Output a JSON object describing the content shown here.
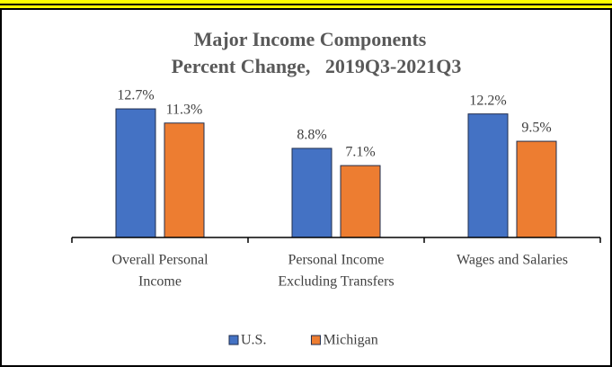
{
  "chart_data": {
    "type": "bar",
    "title": [
      "Major Income Components",
      "Percent Change,   2019Q3-2021Q3"
    ],
    "categories": [
      [
        "Overall Personal",
        "Income"
      ],
      [
        "Personal Income",
        "Excluding Transfers"
      ],
      [
        "Wages and Salaries"
      ]
    ],
    "series": [
      {
        "name": "U.S.",
        "color": "#4472c4",
        "values": [
          12.7,
          8.8,
          12.2
        ],
        "value_labels": [
          "12.7%",
          "8.8%",
          "12.2%"
        ]
      },
      {
        "name": "Michigan",
        "color": "#ed7d31",
        "values": [
          11.3,
          7.1,
          9.5
        ],
        "value_labels": [
          "11.3%",
          "7.1%",
          "9.5%"
        ]
      }
    ],
    "ylim": [
      0,
      14
    ],
    "grid": false,
    "legend": "bottom"
  }
}
